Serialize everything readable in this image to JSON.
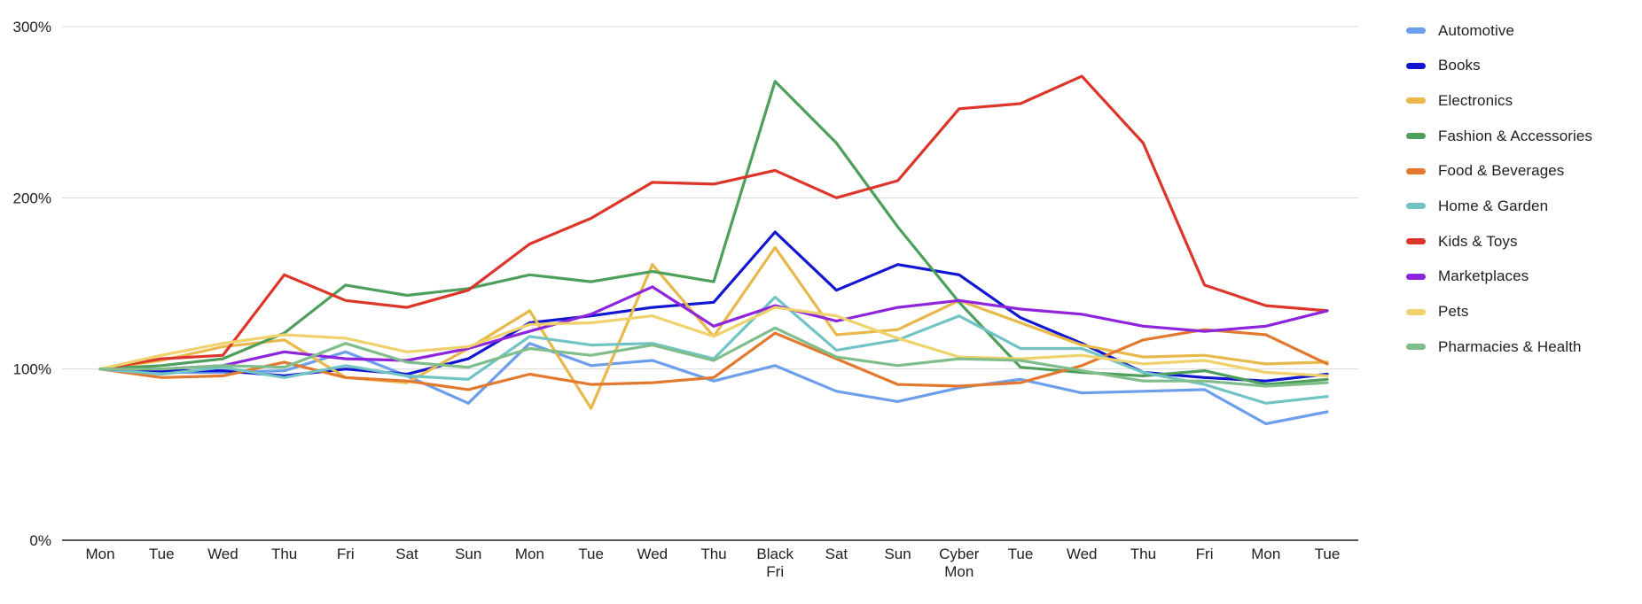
{
  "chart_data": {
    "type": "line",
    "title": "",
    "xlabel": "",
    "ylabel": "",
    "categories": [
      "Mon",
      "Tue",
      "Wed",
      "Thu",
      "Fri",
      "Sat",
      "Sun",
      "Mon",
      "Tue",
      "Wed",
      "Thu",
      "Black Fri",
      "Sat",
      "Sun",
      "Cyber Mon",
      "Tue",
      "Wed",
      "Thu",
      "Fri",
      "Mon",
      "Tue"
    ],
    "series": [
      {
        "name": "Automotive",
        "color": "#6d9eeb",
        "values": [
          100,
          98,
          98,
          99,
          110,
          96,
          80,
          115,
          102,
          105,
          93,
          102,
          87,
          81,
          89,
          94,
          86,
          87,
          88,
          68,
          75
        ]
      },
      {
        "name": "Books",
        "color": "#1216d0",
        "values": [
          100,
          99,
          99,
          96,
          100,
          97,
          106,
          127,
          131,
          136,
          139,
          180,
          146,
          161,
          155,
          130,
          115,
          98,
          95,
          93,
          97
        ]
      },
      {
        "name": "Electronics",
        "color": "#e8b84b",
        "values": [
          100,
          105,
          113,
          117,
          95,
          92,
          112,
          134,
          77,
          161,
          119,
          171,
          120,
          123,
          140,
          127,
          114,
          107,
          108,
          103,
          104
        ]
      },
      {
        "name": "Fashion & Accessories",
        "color": "#4e9e5c",
        "values": [
          100,
          102,
          106,
          121,
          149,
          143,
          147,
          155,
          151,
          157,
          151,
          268,
          232,
          183,
          139,
          101,
          98,
          96,
          99,
          91,
          94
        ]
      },
      {
        "name": "Food & Beverages",
        "color": "#e2792f",
        "values": [
          100,
          95,
          96,
          104,
          95,
          93,
          88,
          97,
          91,
          92,
          95,
          121,
          106,
          91,
          90,
          92,
          102,
          117,
          123,
          120,
          103
        ]
      },
      {
        "name": "Home & Garden",
        "color": "#72c4c4",
        "values": [
          100,
          97,
          101,
          95,
          102,
          96,
          94,
          119,
          114,
          115,
          106,
          142,
          111,
          117,
          131,
          112,
          112,
          98,
          91,
          80,
          84
        ]
      },
      {
        "name": "Kids & Toys",
        "color": "#dc352a",
        "values": [
          100,
          106,
          108,
          155,
          140,
          136,
          146,
          173,
          188,
          209,
          208,
          216,
          200,
          210,
          252,
          255,
          271,
          232,
          149,
          137,
          134
        ]
      },
      {
        "name": "Marketplaces",
        "color": "#8e24dc",
        "values": [
          100,
          100,
          102,
          110,
          106,
          105,
          112,
          122,
          132,
          148,
          125,
          137,
          128,
          136,
          140,
          135,
          132,
          125,
          122,
          125,
          134
        ]
      },
      {
        "name": "Pets",
        "color": "#efd26b",
        "values": [
          100,
          108,
          115,
          120,
          118,
          110,
          113,
          126,
          127,
          131,
          119,
          136,
          131,
          118,
          107,
          106,
          108,
          103,
          105,
          98,
          96
        ]
      },
      {
        "name": "Pharmacies & Health",
        "color": "#7fbd8b",
        "values": [
          100,
          100,
          102,
          101,
          115,
          104,
          101,
          112,
          108,
          114,
          105,
          124,
          107,
          102,
          106,
          105,
          99,
          93,
          93,
          90,
          92
        ]
      }
    ],
    "y_axis": {
      "tick_labels": [
        "0%",
        "100%",
        "200%",
        "300%"
      ],
      "tick_values": [
        0,
        100,
        200,
        300
      ],
      "min": 0,
      "max": 300,
      "unit": "%"
    },
    "grid": true,
    "legend_position": "right"
  },
  "colors": {
    "background": "#ffffff",
    "gridline": "#d9d9d9",
    "axis_line": "#565656",
    "text": "#202020"
  }
}
